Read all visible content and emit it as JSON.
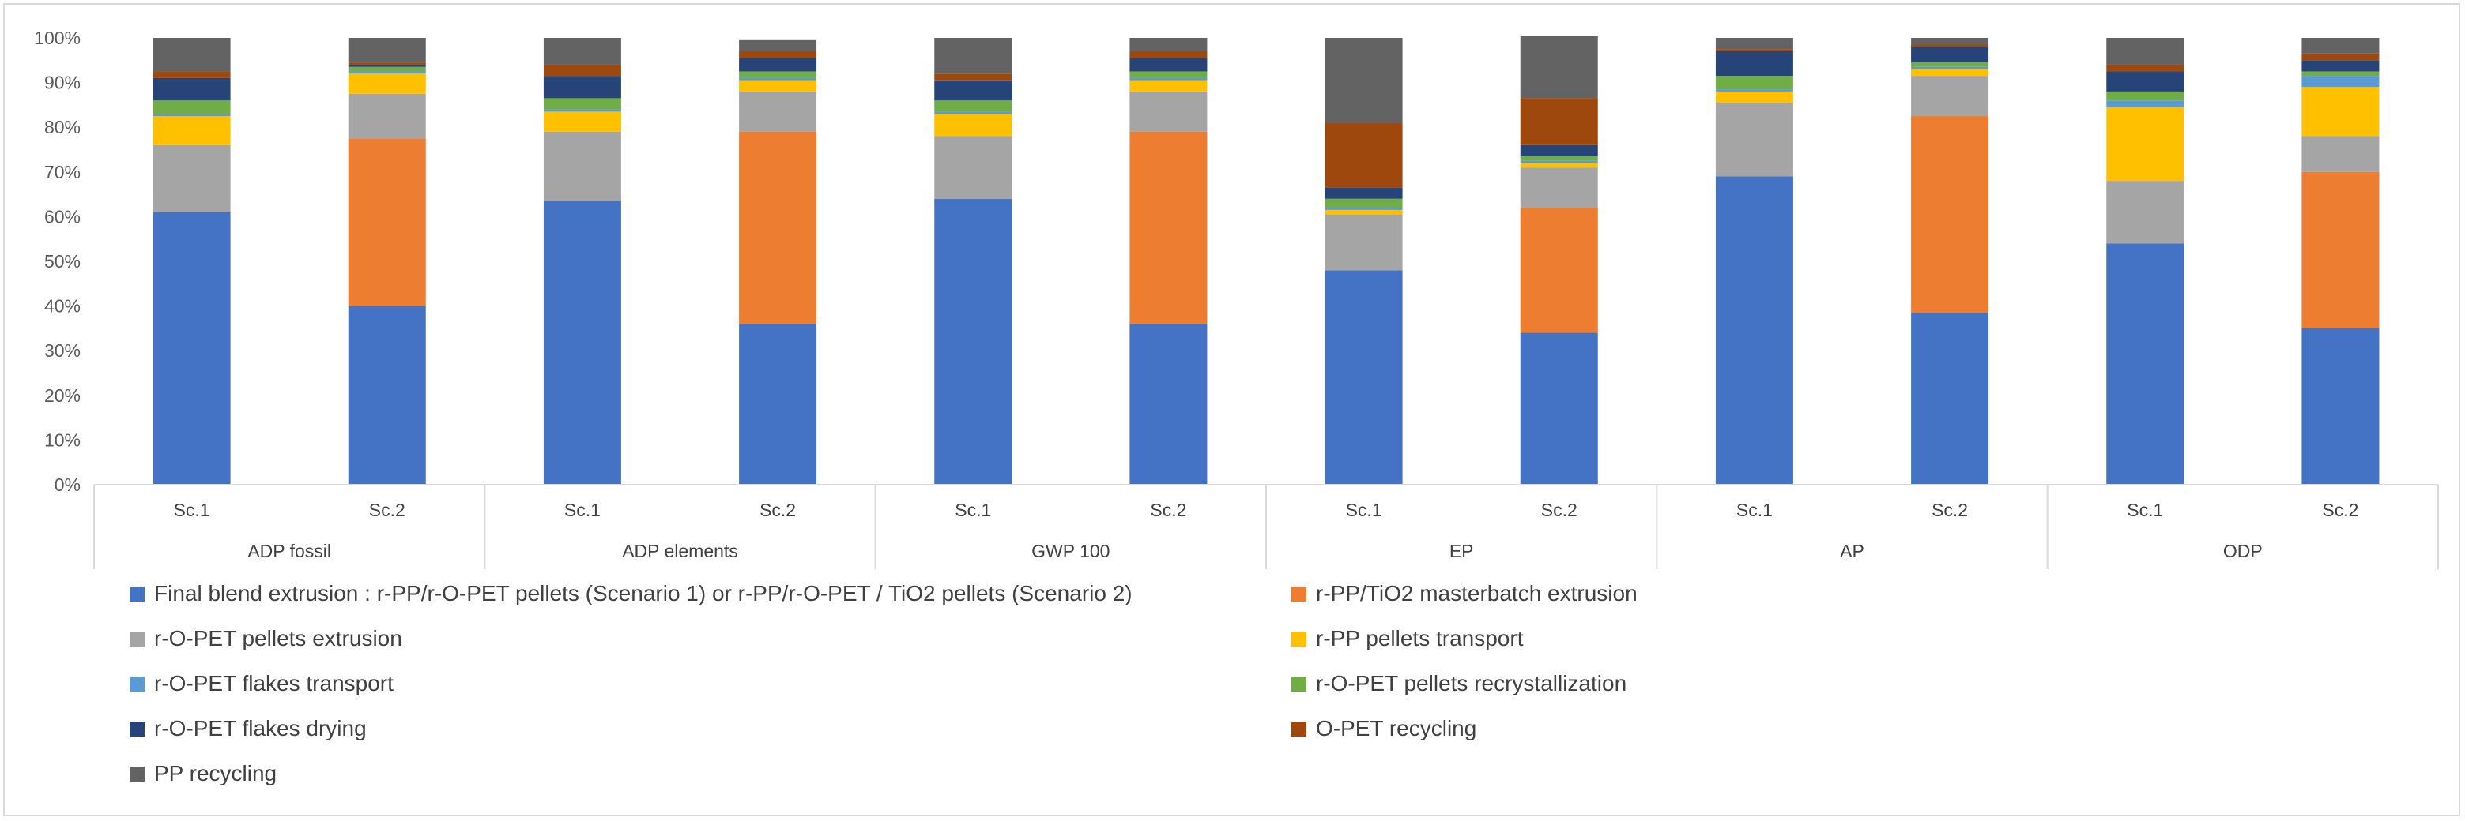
{
  "chart_data": {
    "type": "bar",
    "stacked": true,
    "percent_stacked": true,
    "title": "",
    "xlabel": "",
    "ylabel": "",
    "ylim": [
      0,
      100
    ],
    "y_ticks": [
      "0%",
      "10%",
      "20%",
      "30%",
      "40%",
      "50%",
      "60%",
      "70%",
      "80%",
      "90%",
      "100%"
    ],
    "groups": [
      "ADP fossil",
      "ADP elements",
      "GWP 100",
      "EP",
      "AP",
      "ODP"
    ],
    "scenarios": [
      "Sc.1",
      "Sc.2"
    ],
    "categories": [
      "ADP fossil Sc.1",
      "ADP fossil Sc.2",
      "ADP elements Sc.1",
      "ADP elements Sc.2",
      "GWP 100 Sc.1",
      "GWP 100 Sc.2",
      "EP Sc.1",
      "EP Sc.2",
      "AP Sc.1",
      "AP Sc.2",
      "ODP Sc.1",
      "ODP Sc.2"
    ],
    "legend_position": "bottom",
    "series": [
      {
        "name": "Final blend extrusion : r-PP/r-O-PET pellets (Scenario 1) or r-PP/r-O-PET / TiO2 pellets (Scenario 2)",
        "color": "#4472c4",
        "values": [
          61,
          40,
          63.5,
          36,
          64,
          36,
          48,
          34,
          69,
          38.5,
          54,
          35
        ]
      },
      {
        "name": "r-PP/TiO2 masterbatch extrusion",
        "color": "#ed7d31",
        "values": [
          0,
          37.5,
          0,
          43,
          0,
          43,
          0,
          28,
          0,
          44,
          0,
          35
        ]
      },
      {
        "name": "r-O-PET pellets extrusion",
        "color": "#a5a5a5",
        "values": [
          15,
          10,
          15.5,
          9,
          14,
          9,
          12.5,
          9,
          16.5,
          9,
          14,
          8
        ]
      },
      {
        "name": "r-PP pellets transport",
        "color": "#ffc000",
        "values": [
          6.5,
          4.5,
          4.5,
          2.5,
          5,
          2.5,
          1,
          1,
          2.5,
          1.5,
          16.5,
          11
        ]
      },
      {
        "name": "r-O-PET flakes transport",
        "color": "#5b9bd5",
        "values": [
          0.5,
          0.5,
          0.5,
          0.5,
          0.5,
          0.5,
          0.5,
          0.5,
          0.5,
          0.5,
          1.5,
          2.5
        ]
      },
      {
        "name": "r-O-PET pellets recrystallization",
        "color": "#70ad47",
        "values": [
          3,
          1,
          2.5,
          1.5,
          2.5,
          1.5,
          2,
          1,
          3,
          1,
          2,
          1
        ]
      },
      {
        "name": "r-O-PET flakes drying",
        "color": "#264478",
        "values": [
          5,
          0.5,
          5,
          3,
          4.5,
          3,
          2.5,
          2.5,
          5.5,
          3.5,
          4.5,
          2.5
        ]
      },
      {
        "name": "O-PET recycling",
        "color": "#9e480e",
        "values": [
          1.5,
          0.5,
          2.5,
          1.5,
          1.5,
          1.5,
          14.5,
          10.5,
          0.5,
          0.5,
          1.5,
          1.5
        ]
      },
      {
        "name": "PP recycling",
        "color": "#636363",
        "values": [
          7.5,
          5.5,
          6,
          2.5,
          8,
          3,
          19,
          14,
          2.5,
          1.5,
          6,
          3.5
        ]
      }
    ]
  }
}
